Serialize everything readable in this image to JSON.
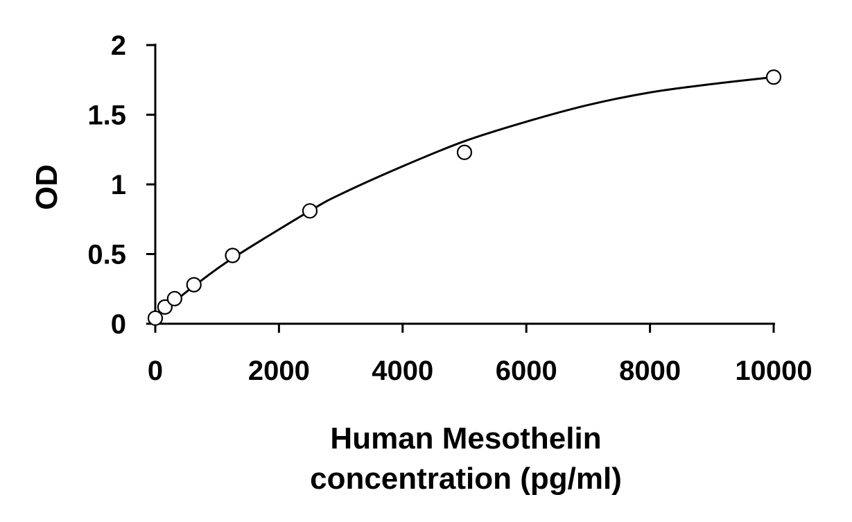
{
  "chart_data": {
    "type": "scatter",
    "title": "",
    "xlabel_lines": [
      "Human Mesothelin",
      "concentration (pg/ml)"
    ],
    "ylabel": "OD",
    "xlim": [
      0,
      10000
    ],
    "ylim": [
      0,
      2
    ],
    "x_ticks": [
      0,
      2000,
      4000,
      6000,
      8000,
      10000
    ],
    "y_ticks": [
      0,
      0.5,
      1,
      1.5,
      2
    ],
    "y_tick_labels": [
      "0",
      "0.5",
      "1",
      "1.5",
      "2"
    ],
    "grid": false,
    "legend": "none",
    "series": [
      {
        "marker": "open-circle",
        "x": [
          0,
          156,
          312,
          625,
          1250,
          2500,
          5000,
          10000
        ],
        "y": [
          0.04,
          0.12,
          0.18,
          0.28,
          0.49,
          0.81,
          1.23,
          1.77
        ]
      }
    ],
    "fit_curve": {
      "x": [
        0,
        156,
        312,
        625,
        1250,
        2500,
        3000,
        4000,
        5000,
        6000,
        7000,
        8000,
        9000,
        10000
      ],
      "y": [
        0.06,
        0.11,
        0.16,
        0.27,
        0.47,
        0.81,
        0.93,
        1.13,
        1.31,
        1.45,
        1.57,
        1.66,
        1.72,
        1.77
      ]
    }
  }
}
